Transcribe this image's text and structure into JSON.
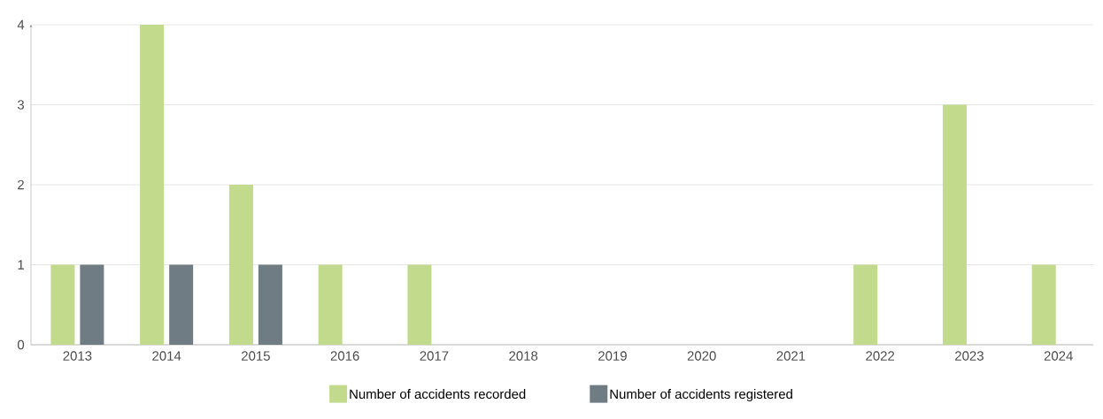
{
  "chart_data": {
    "type": "bar",
    "categories": [
      "2013",
      "2014",
      "2015",
      "2016",
      "2017",
      "2018",
      "2019",
      "2020",
      "2021",
      "2022",
      "2023",
      "2024"
    ],
    "series": [
      {
        "name": "Number of accidents recorded",
        "color": "#c2da8c",
        "values": [
          1,
          4,
          2,
          1,
          1,
          0,
          0,
          0,
          0,
          1,
          3,
          1
        ]
      },
      {
        "name": "Number of accidents registered",
        "color": "#6f7c84",
        "values": [
          1,
          1,
          1,
          0,
          0,
          0,
          0,
          0,
          0,
          0,
          0,
          0
        ]
      }
    ],
    "ylim": [
      0,
      4
    ],
    "yticks": [
      0,
      1,
      2,
      3,
      4
    ],
    "grid": "y",
    "legend": "bottom"
  }
}
